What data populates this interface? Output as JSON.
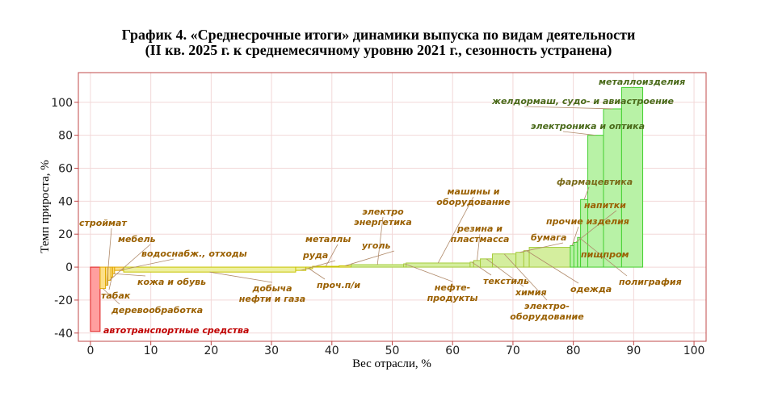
{
  "chart_data": {
    "type": "bar",
    "variant": "variable-width",
    "title": "График 4. «Среднесрочные итоги» динамики выпуска по видам деятельности",
    "subtitle": "(II кв. 2025 г. к среднемесячному уровню 2021 г., сезонность устранена)",
    "xlabel": "Вес отрасли, %",
    "ylabel": "Темп прироста, %",
    "xlim": [
      -2,
      102
    ],
    "ylim": [
      -45,
      118
    ],
    "xticks": [
      0,
      10,
      20,
      30,
      40,
      50,
      60,
      70,
      80,
      90,
      100
    ],
    "yticks": [
      -40,
      -20,
      0,
      20,
      40,
      60,
      80,
      100
    ],
    "grid": true,
    "categories": [
      "автотранспортные средства",
      "деревообработка",
      "строймат",
      "мебель",
      "табак",
      "кожа и обувь",
      "водоснабж., отходы",
      "добыча нефти и газа",
      "руда",
      "проч.п/и",
      "металлы",
      "уголь",
      "электро энергетика",
      "нефте- продукты",
      "машины и оборудование",
      "текстиль",
      "резина и пластмасса",
      "химия",
      "электро- оборудование",
      "бумага",
      "одежда",
      "пищпром",
      "прочие изделия",
      "напитки",
      "полиграфия",
      "фармацевтика",
      "электроника и оптика",
      "желдормаш, судо- и авиастроение",
      "металлоизделия"
    ],
    "weights": [
      1.6,
      0.9,
      0.4,
      0.5,
      0.3,
      0.3,
      1.5,
      28.5,
      1.7,
      1.1,
      4.4,
      2.0,
      8.7,
      0.4,
      10.6,
      0.6,
      1.1,
      2.0,
      3.9,
      1.3,
      0.9,
      6.8,
      0.6,
      0.6,
      0.5,
      1.2,
      2.6,
      3.0,
      3.5
    ],
    "values": [
      -39,
      -13,
      -11,
      -8,
      -6,
      -4,
      -2,
      -3,
      -2,
      -1,
      0.5,
      0.8,
      1.5,
      2,
      2.5,
      3,
      4,
      5,
      8,
      9,
      10,
      12,
      13,
      15,
      18,
      41,
      80,
      96,
      109
    ],
    "label_colors": {
      "negative": "#c00000",
      "low": "#9a6000",
      "mid": "#7a6a1a",
      "high": "#4a6a1a"
    },
    "series_colors": {
      "negative_fill": "#ff9f9f",
      "negative_stroke": "#e02020",
      "orange_fill": "#fde08a",
      "orange_stroke": "#e2a800",
      "yellow_fill": "#eef0a0",
      "yellow_stroke": "#c8c400",
      "ygreen_fill": "#d4ee9e",
      "ygreen_stroke": "#a6cc3c",
      "green_fill": "#b8f2a6",
      "green_stroke": "#44d030"
    },
    "frame_color": "#c04848"
  }
}
